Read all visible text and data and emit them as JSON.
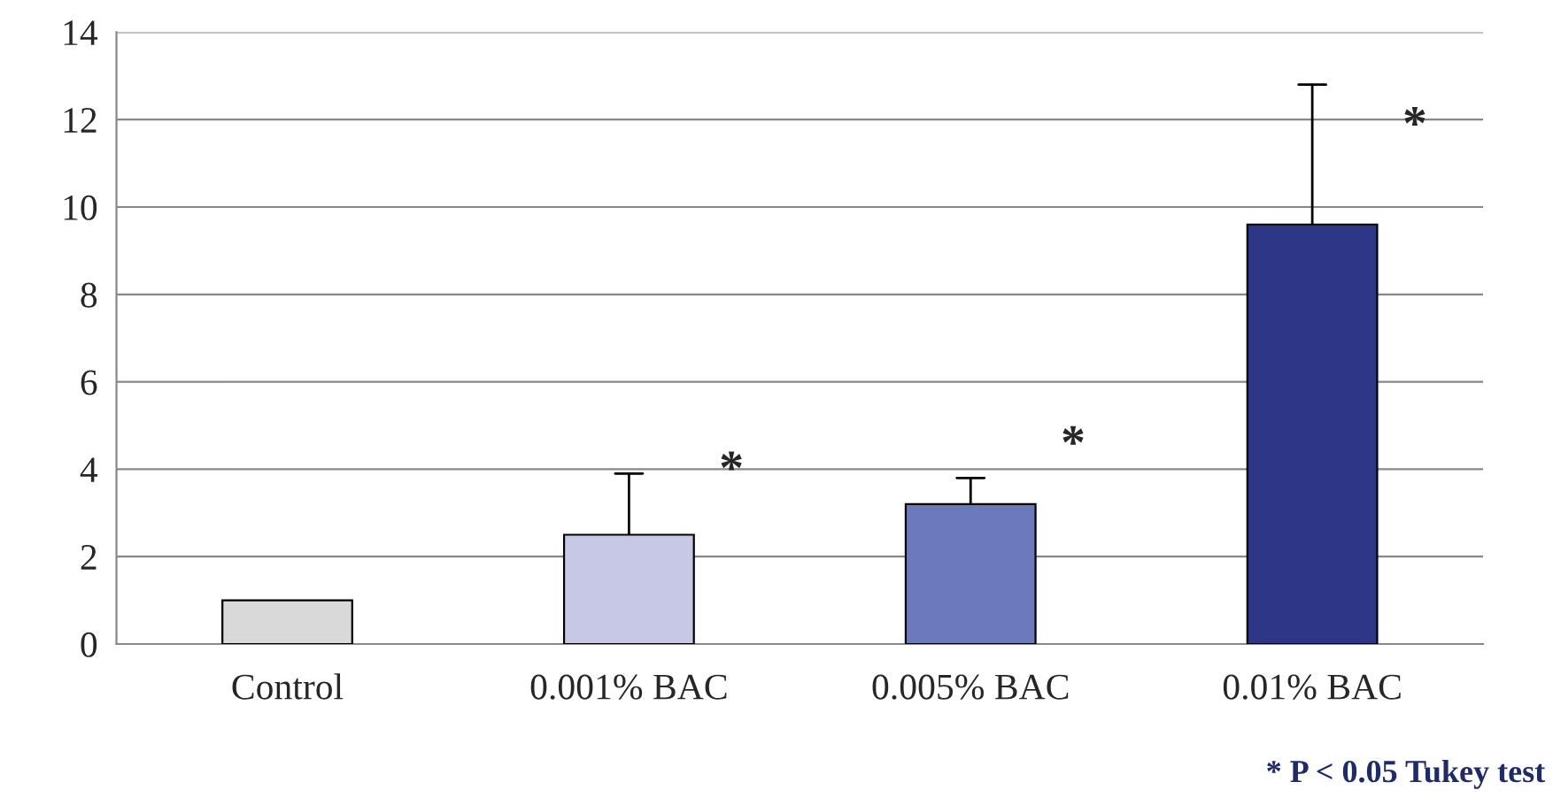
{
  "chart_data": {
    "type": "bar",
    "categories": [
      "Control",
      "0.001% BAC",
      "0.005% BAC",
      "0.01% BAC"
    ],
    "values": [
      1.0,
      2.5,
      3.2,
      9.6
    ],
    "colors": [
      "#d9d9d9",
      "#c6c8e6",
      "#6c79bd",
      "#2e3787"
    ],
    "errors": [
      null,
      [
        2.5,
        3.9
      ],
      [
        3.2,
        3.8
      ],
      [
        9.6,
        12.8
      ]
    ],
    "ylim": [
      0,
      14
    ],
    "yticks": [
      0,
      2,
      4,
      6,
      8,
      10,
      12,
      14
    ],
    "grid": "y",
    "annotations": [
      "*",
      "*",
      "*",
      "* P < 0.05 Tukey test"
    ]
  }
}
